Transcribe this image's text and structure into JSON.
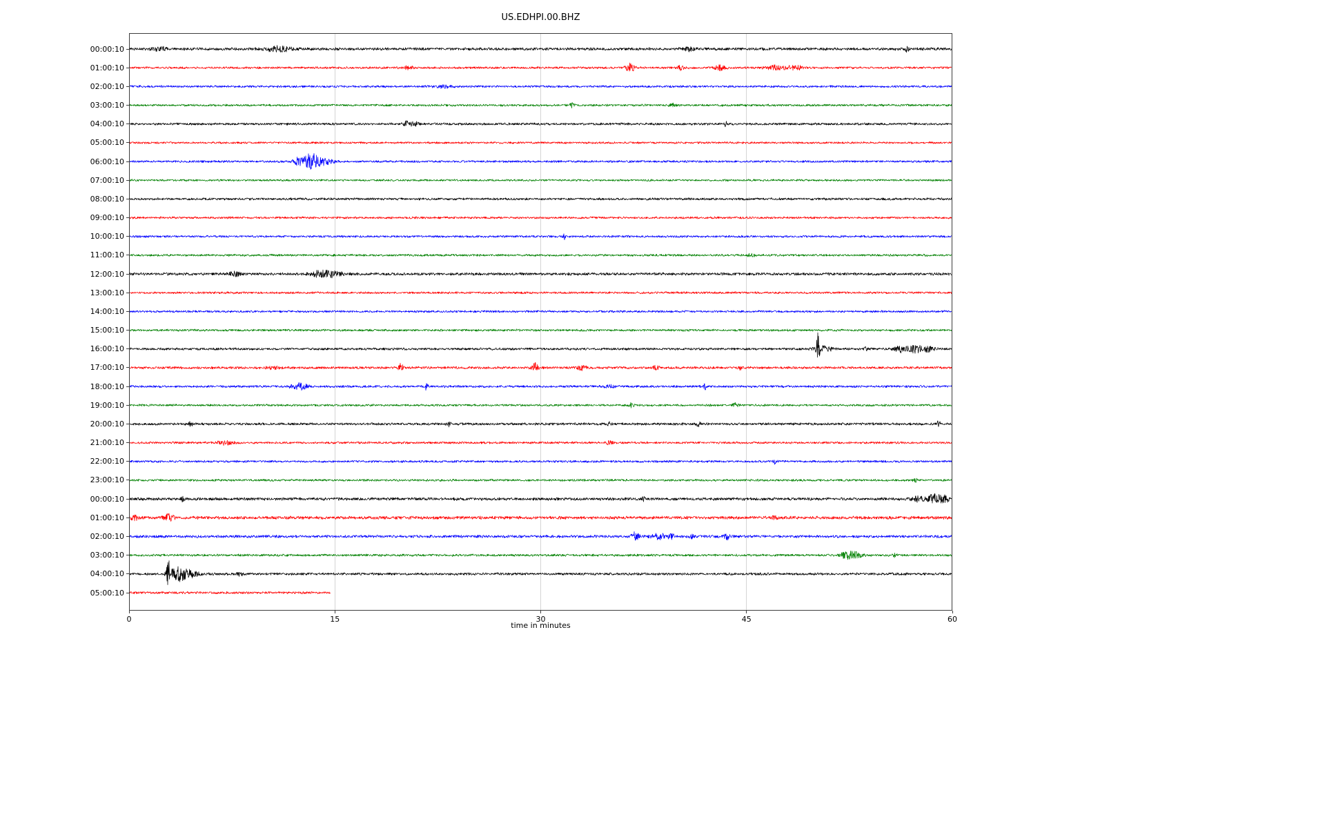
{
  "chart_data": {
    "type": "line",
    "title": "US.EDHPI.00.BHZ",
    "xlabel": "time in minutes",
    "x_range": [
      0,
      60
    ],
    "x_tick_values": [
      0,
      15,
      30,
      45,
      60
    ],
    "x_tick_labels": [
      "0",
      "15",
      "30",
      "45",
      "60"
    ],
    "grid": "vertical-light",
    "trace_colors": {
      "black": "#000000",
      "red": "#ff0000",
      "blue": "#0000ff",
      "green": "#008000"
    },
    "rows": [
      {
        "label": "00:00:10",
        "color": "#000000",
        "noise": 1.8,
        "end": 60,
        "events": [
          {
            "t": 2.3,
            "amp": 2.2,
            "dur": 0.4
          },
          {
            "t": 10.9,
            "amp": 3.2,
            "dur": 0.7
          },
          {
            "t": 40.8,
            "amp": 2.2,
            "dur": 0.3
          },
          {
            "t": 56.7,
            "amp": 3.5,
            "dur": 0.08
          }
        ]
      },
      {
        "label": "01:00:10",
        "color": "#ff0000",
        "noise": 1.4,
        "end": 60,
        "events": [
          {
            "t": 20.3,
            "amp": 2.0,
            "dur": 0.3
          },
          {
            "t": 36.5,
            "amp": 6.0,
            "dur": 0.25
          },
          {
            "t": 40.2,
            "amp": 3.0,
            "dur": 0.2
          },
          {
            "t": 43.1,
            "amp": 3.5,
            "dur": 0.3
          },
          {
            "t": 47.2,
            "amp": 3.0,
            "dur": 0.6
          },
          {
            "t": 48.6,
            "amp": 2.5,
            "dur": 0.4
          }
        ]
      },
      {
        "label": "02:00:10",
        "color": "#0000ff",
        "noise": 1.4,
        "end": 60,
        "events": [
          {
            "t": 23.0,
            "amp": 1.6,
            "dur": 0.5
          }
        ]
      },
      {
        "label": "03:00:10",
        "color": "#008000",
        "noise": 1.4,
        "end": 60,
        "events": [
          {
            "t": 32.3,
            "amp": 3.5,
            "dur": 0.12
          },
          {
            "t": 39.6,
            "amp": 2.2,
            "dur": 0.15
          }
        ]
      },
      {
        "label": "04:00:10",
        "color": "#000000",
        "noise": 1.5,
        "end": 60,
        "events": [
          {
            "t": 20.2,
            "amp": 4.0,
            "dur": 0.15
          },
          {
            "t": 20.8,
            "amp": 3.0,
            "dur": 0.25
          },
          {
            "t": 43.5,
            "amp": 3.0,
            "dur": 0.08
          }
        ]
      },
      {
        "label": "05:00:10",
        "color": "#ff0000",
        "noise": 1.3,
        "end": 60,
        "events": [
          {
            "t": 56.9,
            "amp": 2.5,
            "dur": 0.08
          }
        ]
      },
      {
        "label": "06:00:10",
        "color": "#0000ff",
        "noise": 1.4,
        "end": 60,
        "events": [
          {
            "t": 12.3,
            "amp": 5.0,
            "dur": 0.25
          },
          {
            "t": 13.2,
            "amp": 11.0,
            "dur": 0.35
          },
          {
            "t": 14.1,
            "amp": 5.0,
            "dur": 0.5
          }
        ]
      },
      {
        "label": "07:00:10",
        "color": "#008000",
        "noise": 1.3,
        "end": 60,
        "events": []
      },
      {
        "label": "08:00:10",
        "color": "#000000",
        "noise": 1.5,
        "end": 60,
        "events": []
      },
      {
        "label": "09:00:10",
        "color": "#ff0000",
        "noise": 1.4,
        "end": 60,
        "events": []
      },
      {
        "label": "10:00:10",
        "color": "#0000ff",
        "noise": 1.4,
        "end": 60,
        "events": [
          {
            "t": 31.7,
            "amp": 4.0,
            "dur": 0.07
          }
        ]
      },
      {
        "label": "11:00:10",
        "color": "#008000",
        "noise": 1.4,
        "end": 60,
        "events": [
          {
            "t": 45.3,
            "amp": 2.0,
            "dur": 0.2
          }
        ]
      },
      {
        "label": "12:00:10",
        "color": "#000000",
        "noise": 1.8,
        "end": 60,
        "events": [
          {
            "t": 7.7,
            "amp": 2.5,
            "dur": 0.3
          },
          {
            "t": 14.0,
            "amp": 4.5,
            "dur": 0.5
          },
          {
            "t": 15.0,
            "amp": 3.0,
            "dur": 0.4
          }
        ]
      },
      {
        "label": "13:00:10",
        "color": "#ff0000",
        "noise": 1.4,
        "end": 60,
        "events": []
      },
      {
        "label": "14:00:10",
        "color": "#0000ff",
        "noise": 1.4,
        "end": 60,
        "events": []
      },
      {
        "label": "15:00:10",
        "color": "#008000",
        "noise": 1.4,
        "end": 60,
        "events": []
      },
      {
        "label": "16:00:10",
        "color": "#000000",
        "noise": 1.5,
        "end": 60,
        "events": [
          {
            "t": 50.2,
            "amp": 24.0,
            "dur": 0.07
          },
          {
            "t": 50.6,
            "amp": 4.0,
            "dur": 0.5
          },
          {
            "t": 53.7,
            "amp": 3.0,
            "dur": 0.1
          },
          {
            "t": 56.2,
            "amp": 4.0,
            "dur": 0.3
          },
          {
            "t": 57.3,
            "amp": 5.0,
            "dur": 0.4
          },
          {
            "t": 58.3,
            "amp": 3.5,
            "dur": 0.3
          }
        ]
      },
      {
        "label": "17:00:10",
        "color": "#ff0000",
        "noise": 1.6,
        "end": 60,
        "events": [
          {
            "t": 10.5,
            "amp": 2.0,
            "dur": 0.3
          },
          {
            "t": 19.8,
            "amp": 6.0,
            "dur": 0.12
          },
          {
            "t": 29.6,
            "amp": 6.0,
            "dur": 0.15
          },
          {
            "t": 33.0,
            "amp": 4.0,
            "dur": 0.2
          },
          {
            "t": 38.4,
            "amp": 2.5,
            "dur": 0.2
          },
          {
            "t": 44.5,
            "amp": 2.5,
            "dur": 0.1
          }
        ]
      },
      {
        "label": "18:00:10",
        "color": "#0000ff",
        "noise": 1.5,
        "end": 60,
        "events": [
          {
            "t": 12.4,
            "amp": 4.5,
            "dur": 0.4
          },
          {
            "t": 21.7,
            "amp": 11.0,
            "dur": 0.06
          },
          {
            "t": 35.0,
            "amp": 2.5,
            "dur": 0.2
          },
          {
            "t": 42.0,
            "amp": 4.0,
            "dur": 0.1
          }
        ]
      },
      {
        "label": "19:00:10",
        "color": "#008000",
        "noise": 1.4,
        "end": 60,
        "events": [
          {
            "t": 36.6,
            "amp": 3.0,
            "dur": 0.12
          },
          {
            "t": 44.2,
            "amp": 2.8,
            "dur": 0.15
          }
        ]
      },
      {
        "label": "20:00:10",
        "color": "#000000",
        "noise": 1.6,
        "end": 60,
        "events": [
          {
            "t": 4.5,
            "amp": 3.0,
            "dur": 0.1
          },
          {
            "t": 23.3,
            "amp": 3.0,
            "dur": 0.1
          },
          {
            "t": 35.0,
            "amp": 3.5,
            "dur": 0.1
          },
          {
            "t": 41.5,
            "amp": 3.0,
            "dur": 0.1
          },
          {
            "t": 59.0,
            "amp": 4.0,
            "dur": 0.1
          }
        ]
      },
      {
        "label": "21:00:10",
        "color": "#ff0000",
        "noise": 1.4,
        "end": 60,
        "events": [
          {
            "t": 7.0,
            "amp": 2.5,
            "dur": 0.4
          },
          {
            "t": 35.0,
            "amp": 2.0,
            "dur": 0.2
          }
        ]
      },
      {
        "label": "22:00:10",
        "color": "#0000ff",
        "noise": 1.4,
        "end": 60,
        "events": [
          {
            "t": 47.1,
            "amp": 3.5,
            "dur": 0.1
          }
        ]
      },
      {
        "label": "23:00:10",
        "color": "#008000",
        "noise": 1.4,
        "end": 60,
        "events": [
          {
            "t": 57.3,
            "amp": 2.5,
            "dur": 0.1
          }
        ]
      },
      {
        "label": "00:00:10",
        "color": "#000000",
        "noise": 1.9,
        "end": 60,
        "events": [
          {
            "t": 3.9,
            "amp": 3.0,
            "dur": 0.1
          },
          {
            "t": 37.5,
            "amp": 3.0,
            "dur": 0.08
          },
          {
            "t": 57.5,
            "amp": 4.0,
            "dur": 0.3
          },
          {
            "t": 58.6,
            "amp": 7.0,
            "dur": 0.25
          },
          {
            "t": 59.3,
            "amp": 5.0,
            "dur": 0.3
          }
        ]
      },
      {
        "label": "01:00:10",
        "color": "#ff0000",
        "noise": 2.0,
        "end": 60,
        "events": [
          {
            "t": 0.4,
            "amp": 3.0,
            "dur": 0.2
          },
          {
            "t": 2.9,
            "amp": 5.0,
            "dur": 0.25
          },
          {
            "t": 47.0,
            "amp": 2.0,
            "dur": 0.2
          }
        ]
      },
      {
        "label": "02:00:10",
        "color": "#0000ff",
        "noise": 1.8,
        "end": 60,
        "events": [
          {
            "t": 36.9,
            "amp": 5.5,
            "dur": 0.2
          },
          {
            "t": 38.6,
            "amp": 3.5,
            "dur": 0.4
          },
          {
            "t": 39.5,
            "amp": 3.0,
            "dur": 0.2
          },
          {
            "t": 41.0,
            "amp": 2.5,
            "dur": 0.1
          },
          {
            "t": 43.6,
            "amp": 5.0,
            "dur": 0.15
          }
        ]
      },
      {
        "label": "03:00:10",
        "color": "#008000",
        "noise": 1.5,
        "end": 60,
        "events": [
          {
            "t": 52.3,
            "amp": 6.0,
            "dur": 0.3
          },
          {
            "t": 53.0,
            "amp": 4.0,
            "dur": 0.3
          },
          {
            "t": 55.8,
            "amp": 2.5,
            "dur": 0.1
          }
        ]
      },
      {
        "label": "04:00:10",
        "color": "#000000",
        "noise": 1.6,
        "end": 60,
        "events": [
          {
            "t": 2.9,
            "amp": 18.0,
            "dur": 0.15
          },
          {
            "t": 3.6,
            "amp": 9.0,
            "dur": 0.3
          },
          {
            "t": 4.4,
            "amp": 5.0,
            "dur": 0.5
          },
          {
            "t": 8.0,
            "amp": 2.5,
            "dur": 0.2
          }
        ]
      },
      {
        "label": "05:00:10",
        "color": "#ff0000",
        "noise": 1.5,
        "end": 14.7,
        "events": []
      }
    ]
  }
}
